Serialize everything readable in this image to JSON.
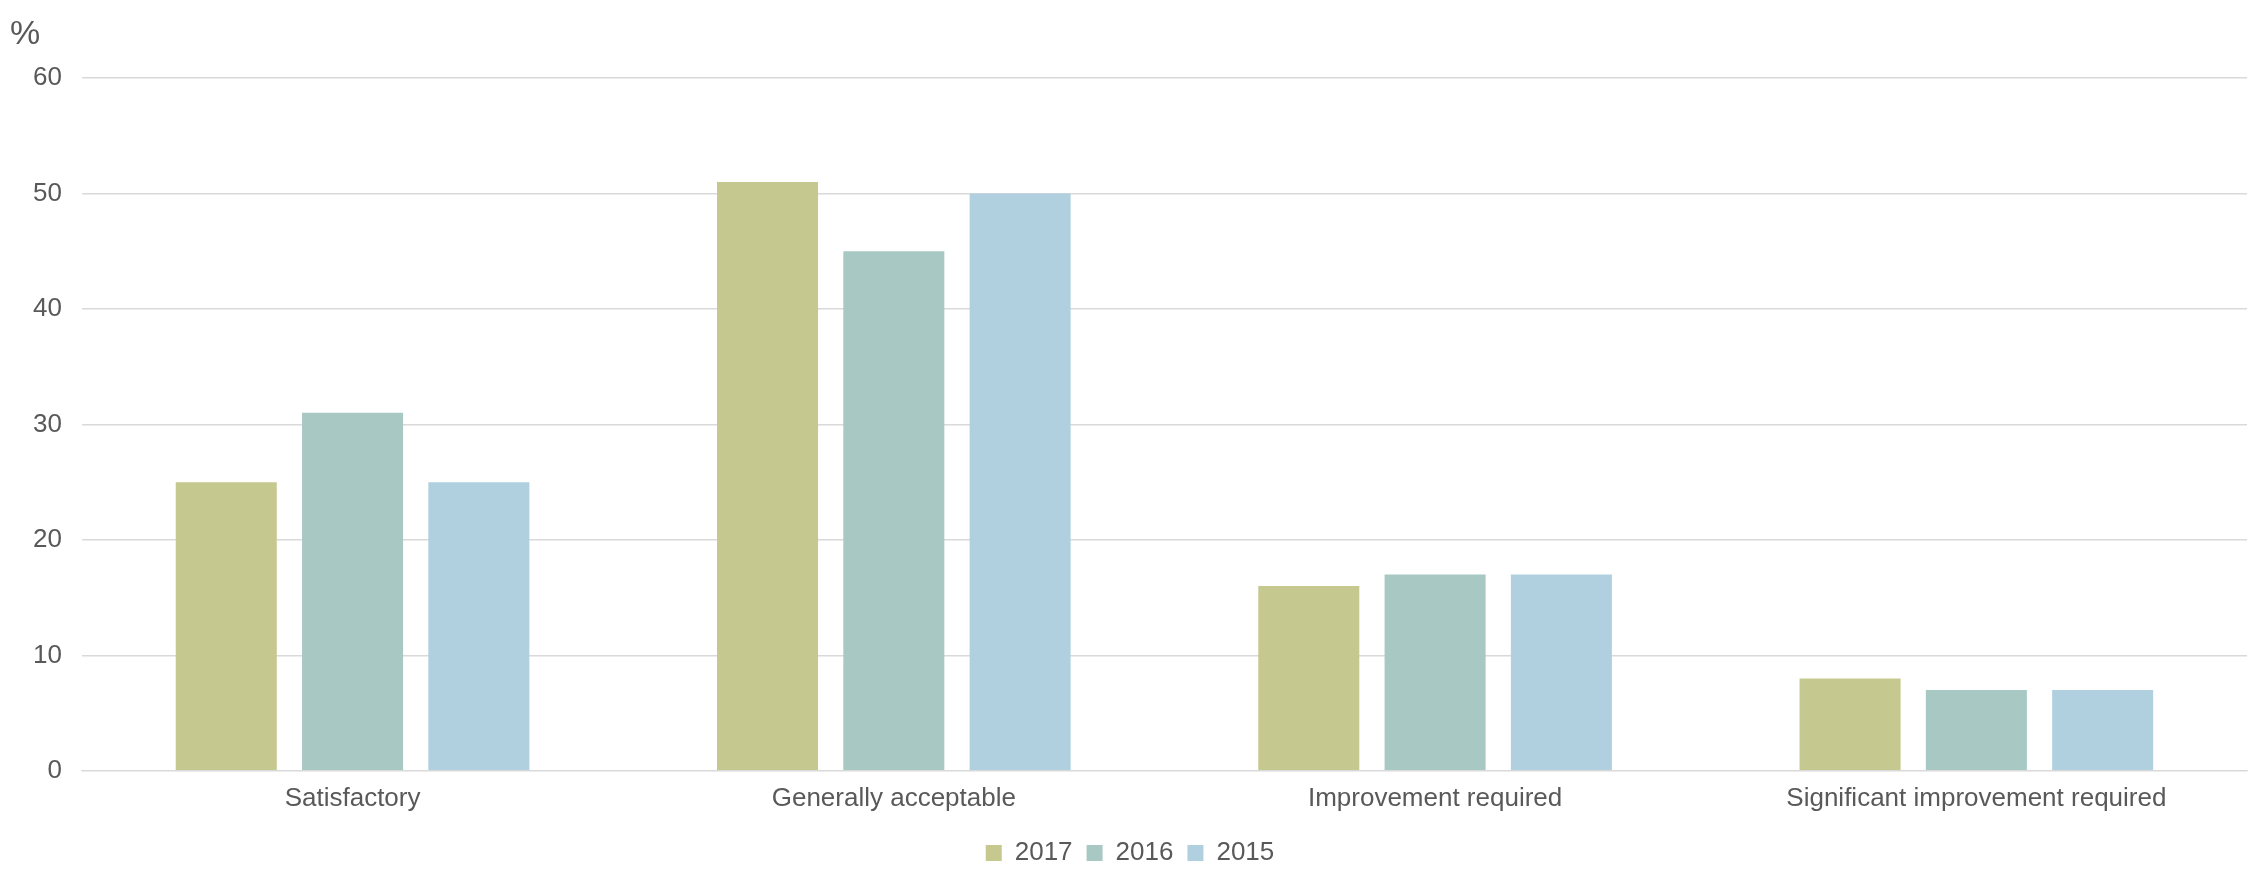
{
  "chart_data": {
    "type": "bar",
    "ylabel": "%",
    "categories": [
      "Satisfactory",
      "Generally acceptable",
      "Improvement required",
      "Significant improvement required"
    ],
    "series": [
      {
        "name": "2017",
        "color": "#c5c98f",
        "values": [
          25,
          51,
          16,
          8
        ]
      },
      {
        "name": "2016",
        "color": "#a8c8c4",
        "values": [
          31,
          45,
          17,
          7
        ]
      },
      {
        "name": "2015",
        "color": "#b0d0e0",
        "values": [
          25,
          50,
          17,
          7
        ]
      }
    ],
    "ylim": [
      0,
      60
    ],
    "yticks": [
      0,
      10,
      20,
      30,
      40,
      50,
      60
    ],
    "grid": "y",
    "legend": "bottom"
  }
}
